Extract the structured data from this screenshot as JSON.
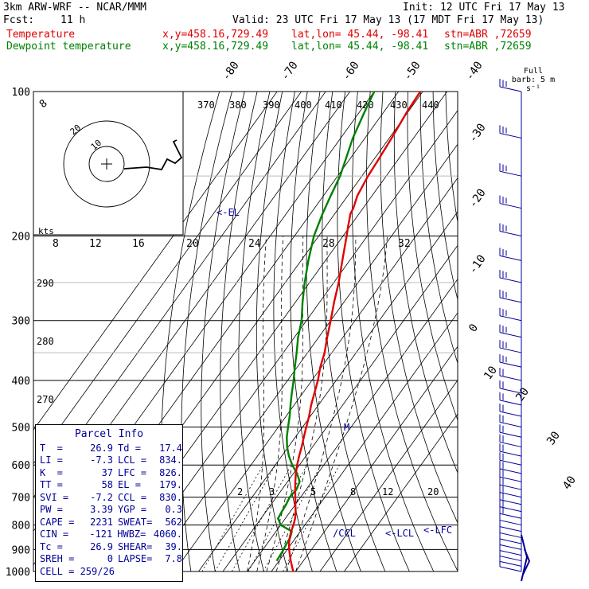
{
  "header": {
    "model": "3km ARW-WRF -- NCAR/MMM",
    "init": "Init: 12 UTC Fri 17 May 13",
    "fcst_label": "Fcst:",
    "fcst_value": "11 h",
    "valid": "Valid: 23 UTC Fri 17 May 13 (17 MDT Fri 17 May 13)",
    "temp_label": "Temperature",
    "dew_label": "Dewpoint temperature",
    "xy": "x,y=458.16,729.49",
    "latlon": "lat,lon= 45.44, -98.41",
    "stn": "stn=ABR ,72659"
  },
  "barb_legend": "Full barb: 5 m s⁻¹",
  "hodograph_label": "kts",
  "colors": {
    "temperature": "#e00000",
    "dewpoint": "#008000",
    "parcel": "#000099",
    "wind": "#000099"
  },
  "annotations": {
    "el": "<-EL",
    "ccl": "/CCL",
    "lcl": "<-LCL",
    "lfc": "<-LFC",
    "m": "M"
  },
  "parcel_info": {
    "title": "Parcel Info",
    "rows": [
      {
        "k1": "T  =",
        "v1": "26.9",
        "k2": "Td =",
        "v2": "17.4"
      },
      {
        "k1": "LI =",
        "v1": "-7.3",
        "k2": "LCL =",
        "v2": "834."
      },
      {
        "k1": "K  =",
        "v1": "37",
        "k2": "LFC =",
        "v2": "826."
      },
      {
        "k1": "TT =",
        "v1": "58",
        "k2": "EL =",
        "v2": "179."
      },
      {
        "k1": "SVI =",
        "v1": "-7.2",
        "k2": "CCL =",
        "v2": "830."
      },
      {
        "k1": "PW =",
        "v1": "3.39",
        "k2": "YGP =",
        "v2": "0.3"
      },
      {
        "k1": "CAPE =",
        "v1": "2231",
        "k2": "SWEAT=",
        "v2": "562"
      },
      {
        "k1": "CIN =",
        "v1": "-121",
        "k2": "HWBZ=",
        "v2": "4060."
      },
      {
        "k1": "Tc =",
        "v1": "26.9",
        "k2": "SHEAR=",
        "v2": "39."
      },
      {
        "k1": "SREH =",
        "v1": "0",
        "k2": "LAPSE=",
        "v2": "7.8"
      }
    ],
    "cell": "CELL = 259/26"
  },
  "chart_data": {
    "type": "line",
    "diagram": "skew-T log-P",
    "y_axis": {
      "label": "pressure (hPa)",
      "ticks": [
        100,
        200,
        300,
        400,
        500,
        600,
        700,
        800,
        900,
        1000
      ],
      "scale": "log",
      "range": [
        1000,
        100
      ]
    },
    "isotherm_labels": [
      -80,
      -70,
      -60,
      -50,
      -40,
      -30,
      -20,
      -10,
      0,
      10,
      20,
      30,
      40
    ],
    "dry_adiabat_labels": [
      370,
      380,
      390,
      400,
      410,
      420,
      430,
      440,
      290,
      280,
      270
    ],
    "mixing_ratio_labels": [
      "2",
      "3",
      "5",
      "8",
      "12",
      "20"
    ],
    "hodograph_ring_labels": [
      "8",
      "12",
      "16",
      "20",
      "24",
      "28",
      "32"
    ],
    "hodograph_ticks": [
      "20",
      "10"
    ],
    "series": [
      {
        "name": "Temperature",
        "points": [
          [
            1000,
            29
          ],
          [
            975,
            26.9
          ],
          [
            950,
            24.8
          ],
          [
            925,
            22.8
          ],
          [
            900,
            20.8
          ],
          [
            875,
            19
          ],
          [
            850,
            17.5
          ],
          [
            825,
            16.2
          ],
          [
            800,
            15.3
          ],
          [
            775,
            14
          ],
          [
            750,
            12.2
          ],
          [
            725,
            10
          ],
          [
            700,
            7.8
          ],
          [
            675,
            5.5
          ],
          [
            650,
            3.2
          ],
          [
            625,
            1
          ],
          [
            600,
            -1
          ],
          [
            575,
            -2.8
          ],
          [
            550,
            -4.5
          ],
          [
            525,
            -6.5
          ],
          [
            500,
            -8.5
          ],
          [
            475,
            -10.5
          ],
          [
            450,
            -13
          ],
          [
            425,
            -15.2
          ],
          [
            400,
            -17.5
          ],
          [
            375,
            -20.5
          ],
          [
            350,
            -23
          ],
          [
            325,
            -26.5
          ],
          [
            300,
            -30
          ],
          [
            275,
            -34
          ],
          [
            250,
            -38
          ],
          [
            225,
            -43
          ],
          [
            200,
            -48.5
          ],
          [
            190,
            -51
          ],
          [
            180,
            -53.5
          ],
          [
            175,
            -54
          ],
          [
            165,
            -56
          ],
          [
            150,
            -57.5
          ],
          [
            140,
            -58
          ],
          [
            125,
            -59
          ],
          [
            110,
            -60.5
          ],
          [
            100,
            -61
          ]
        ]
      },
      {
        "name": "Dewpoint temperature",
        "points": [
          [
            950,
            19
          ],
          [
            925,
            18.8
          ],
          [
            900,
            18.5
          ],
          [
            875,
            18
          ],
          [
            850,
            17.7
          ],
          [
            825,
            16.5
          ],
          [
            800,
            10
          ],
          [
            775,
            7
          ],
          [
            750,
            6.5
          ],
          [
            725,
            6.2
          ],
          [
            700,
            5.5
          ],
          [
            675,
            6
          ],
          [
            650,
            5
          ],
          [
            625,
            1.5
          ],
          [
            600,
            -3
          ],
          [
            575,
            -7
          ],
          [
            550,
            -10.5
          ],
          [
            525,
            -13.5
          ],
          [
            500,
            -16
          ],
          [
            475,
            -18.5
          ],
          [
            450,
            -21.5
          ],
          [
            425,
            -24.5
          ],
          [
            400,
            -27.5
          ],
          [
            375,
            -31
          ],
          [
            350,
            -34.5
          ],
          [
            325,
            -38.5
          ],
          [
            300,
            -42
          ],
          [
            275,
            -47
          ],
          [
            250,
            -52
          ],
          [
            225,
            -57
          ],
          [
            200,
            -62
          ],
          [
            180,
            -65
          ],
          [
            165,
            -67
          ],
          [
            150,
            -69
          ],
          [
            125,
            -75
          ],
          [
            110,
            -78
          ],
          [
            100,
            -80
          ]
        ]
      }
    ],
    "wind_barbs_hpa": [
      1000,
      975,
      950,
      925,
      900,
      875,
      850,
      825,
      800,
      775,
      750,
      725,
      700,
      675,
      650,
      625,
      600,
      575,
      550,
      525,
      500,
      475,
      450,
      425,
      400,
      375,
      350,
      325,
      300,
      275,
      250,
      225,
      200,
      175,
      150,
      125,
      100
    ]
  }
}
